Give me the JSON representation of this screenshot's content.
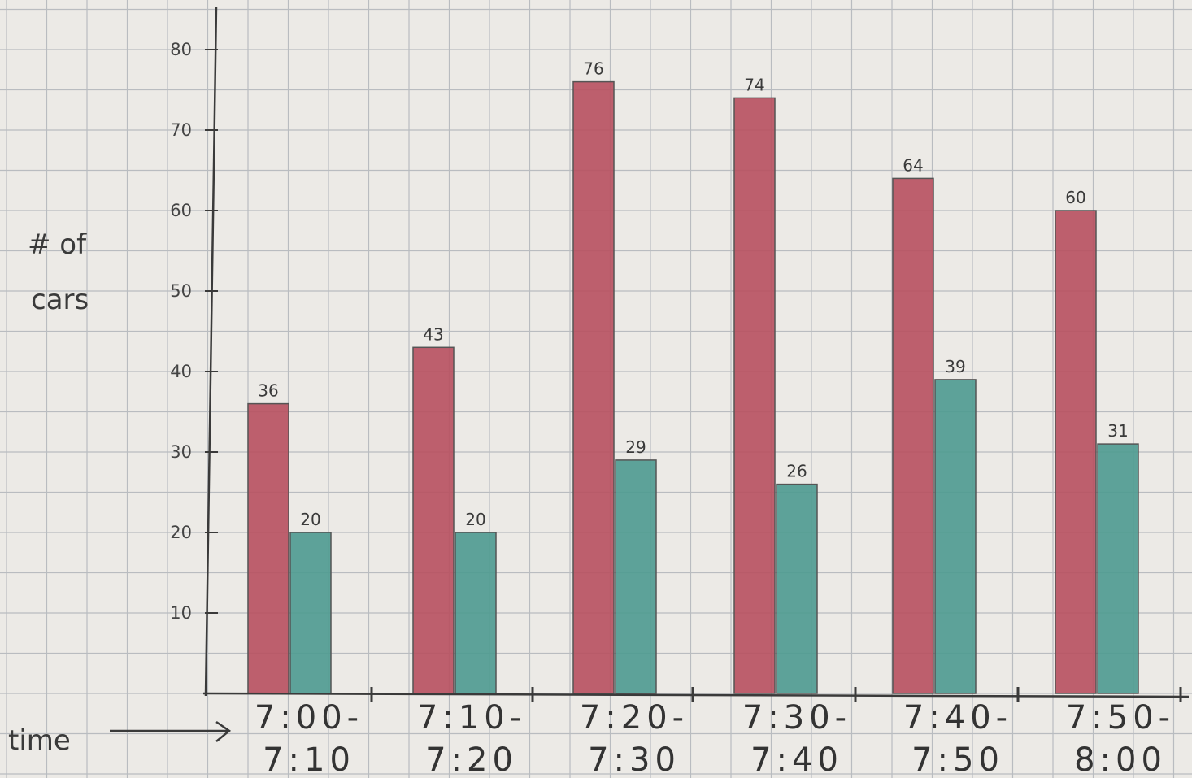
{
  "chart_data": {
    "type": "bar",
    "ylabel_lines": [
      "# of",
      "cars"
    ],
    "xlabel": "time",
    "ylim": [
      0,
      80
    ],
    "yticks": [
      10,
      20,
      30,
      40,
      50,
      60,
      70,
      80
    ],
    "grid": true,
    "categories": [
      [
        "7:00-",
        "7:10"
      ],
      [
        "7:10-",
        "7:20"
      ],
      [
        "7:20-",
        "7:30"
      ],
      [
        "7:30-",
        "7:40"
      ],
      [
        "7:40-",
        "7:50"
      ],
      [
        "7:50-",
        "8:00"
      ]
    ],
    "series": [
      {
        "color": "#b8505f",
        "values": [
          36,
          43,
          76,
          74,
          64,
          60
        ]
      },
      {
        "color": "#4e9a90",
        "values": [
          20,
          20,
          29,
          26,
          39,
          31
        ]
      }
    ]
  },
  "colors": {
    "paper": "#eceae6",
    "grid_line": "#b9bcc0",
    "pencil": "#3a3a3a"
  },
  "icons": {
    "x_axis_pointer": "arrow-right-icon"
  }
}
